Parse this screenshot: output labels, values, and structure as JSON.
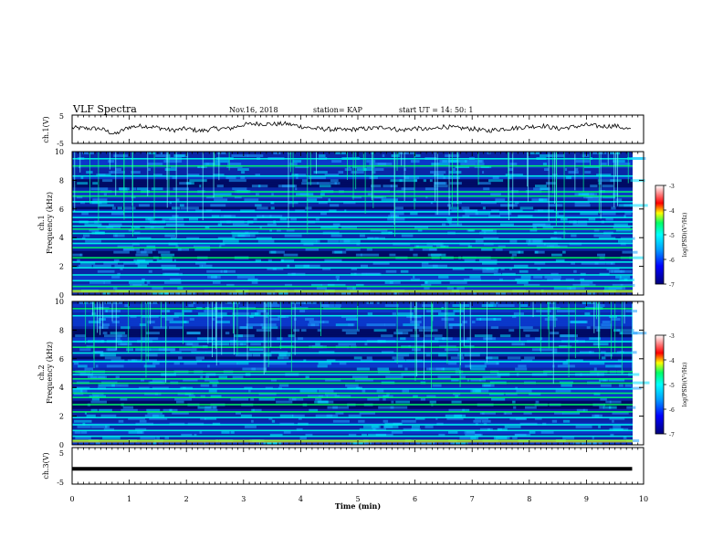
{
  "header": {
    "title": "VLF Spectra",
    "date": "Nov.16, 2018",
    "station": "station= KAP",
    "start": "start  UT =   14: 50: 1"
  },
  "chart_data": [
    {
      "type": "line",
      "panel": "ch1-waveform",
      "ylabel": "ch.1(V)",
      "ylim": [
        -5,
        5
      ],
      "yticks": [
        "5",
        "-5"
      ],
      "x": [
        0.0,
        0.25,
        0.5,
        0.75,
        1.0,
        1.25,
        1.5,
        1.75,
        2.0,
        2.25,
        2.5,
        2.75,
        3.0,
        3.25,
        3.5,
        3.75,
        4.0,
        4.25,
        4.5,
        4.75,
        5.0,
        5.25,
        5.5,
        5.75,
        6.0,
        6.25,
        6.5,
        6.75,
        7.0,
        7.25,
        7.5,
        7.75,
        8.0,
        8.25,
        8.5,
        8.75,
        9.0,
        9.25,
        9.5,
        9.8
      ],
      "y": [
        0.5,
        0.3,
        0.2,
        -1.8,
        0.8,
        1.2,
        0.6,
        -0.4,
        0.2,
        -0.6,
        0.3,
        0.2,
        1.6,
        2.0,
        1.8,
        1.9,
        1.0,
        0.2,
        0.0,
        -0.3,
        0.1,
        0.3,
        0.8,
        -0.4,
        0.4,
        -0.2,
        1.0,
        0.4,
        0.2,
        -0.6,
        0.1,
        0.4,
        0.9,
        1.2,
        0.2,
        0.8,
        1.5,
        1.0,
        1.2,
        -0.2
      ]
    },
    {
      "type": "heatmap",
      "panel": "ch1-spectrogram",
      "ylabel": "ch.1\nFrequency  (kHz)",
      "ylim": [
        0,
        10
      ],
      "yticks": [
        "0",
        "2",
        "4",
        "6",
        "8",
        "10"
      ],
      "colorbar_label": "log(PSD)(V²/Hz)",
      "colorbar_ticks": [
        "-3",
        "-4",
        "-5",
        "-6",
        "-7"
      ],
      "bands_khz": [
        0.3,
        0.6,
        1.0,
        1.4,
        1.9,
        2.3,
        2.6,
        3.3,
        3.6,
        3.9,
        4.3,
        4.6,
        4.8,
        5.1,
        5.4,
        5.8,
        6.5,
        6.9,
        7.2,
        8.3,
        9.0,
        9.5
      ]
    },
    {
      "type": "heatmap",
      "panel": "ch2-spectrogram",
      "ylabel": "ch.2\nFrequency  (kHz)",
      "ylim": [
        0,
        10
      ],
      "yticks": [
        "0",
        "2",
        "4",
        "6",
        "8",
        "10"
      ],
      "colorbar_label": "log(PSD)(V²/Hz)",
      "colorbar_ticks": [
        "-3",
        "-4",
        "-5",
        "-6",
        "-7"
      ],
      "bands_khz": [
        0.3,
        0.6,
        1.0,
        1.4,
        1.9,
        2.3,
        2.8,
        3.3,
        3.6,
        3.9,
        4.3,
        4.6,
        4.9,
        5.1,
        5.8,
        6.4,
        6.8,
        7.2,
        9.0,
        9.5
      ]
    },
    {
      "type": "line",
      "panel": "ch3-waveform",
      "ylabel": "ch.3(V)",
      "ylim": [
        -5,
        5
      ],
      "yticks": [
        "5",
        "-5"
      ],
      "x": [
        0,
        9.8
      ],
      "y": [
        -0.8,
        -0.8
      ]
    }
  ],
  "x_axis": {
    "label": "Time  (min)",
    "ticks": [
      "0",
      "1",
      "2",
      "3",
      "4",
      "5",
      "6",
      "7",
      "8",
      "9",
      "10"
    ],
    "xlim": [
      0,
      10
    ]
  },
  "colors": {
    "low": "#00007a",
    "mid": "#00c0ff",
    "high": "#00ff66",
    "peak": "#ff0000"
  }
}
